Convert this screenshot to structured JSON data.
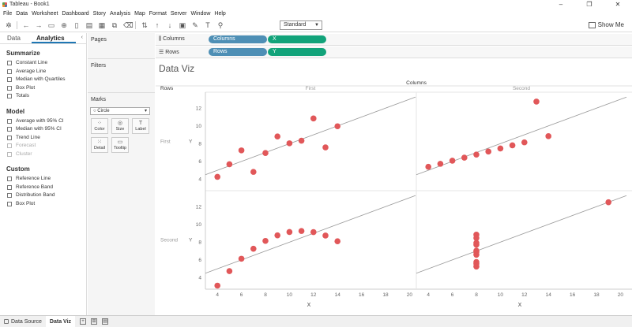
{
  "window": {
    "title": "Tableau - Book1",
    "minimize": "–",
    "maximize": "❐",
    "close": "✕"
  },
  "menu": [
    "File",
    "Data",
    "Worksheet",
    "Dashboard",
    "Story",
    "Analysis",
    "Map",
    "Format",
    "Server",
    "Window",
    "Help"
  ],
  "toolbar": {
    "fit": "Standard",
    "show_me": "Show Me"
  },
  "left_pane": {
    "tabs": [
      "Data",
      "Analytics"
    ],
    "collapse": "‹",
    "sections": [
      {
        "title": "Summarize",
        "items": [
          {
            "label": "Constant Line",
            "disabled": false
          },
          {
            "label": "Average Line",
            "disabled": false
          },
          {
            "label": "Median with Quartiles",
            "disabled": false
          },
          {
            "label": "Box Plot",
            "disabled": false
          },
          {
            "label": "Totals",
            "disabled": false
          }
        ]
      },
      {
        "title": "Model",
        "items": [
          {
            "label": "Average with 95% CI",
            "disabled": false
          },
          {
            "label": "Median with 95% CI",
            "disabled": false
          },
          {
            "label": "Trend Line",
            "disabled": false
          },
          {
            "label": "Forecast",
            "disabled": true
          },
          {
            "label": "Cluster",
            "disabled": true
          }
        ]
      },
      {
        "title": "Custom",
        "items": [
          {
            "label": "Reference Line",
            "disabled": false
          },
          {
            "label": "Reference Band",
            "disabled": false
          },
          {
            "label": "Distribution Band",
            "disabled": false
          },
          {
            "label": "Box Plot",
            "disabled": false
          }
        ]
      }
    ]
  },
  "cards": {
    "pages": "Pages",
    "filters": "Filters",
    "marks": "Marks",
    "mark_type": "Circle",
    "mark_buttons": [
      "Color",
      "Size",
      "Label",
      "Detail",
      "Tooltip"
    ]
  },
  "shelves": {
    "columns": {
      "label": "Columns",
      "pills": [
        "Columns",
        "X"
      ]
    },
    "rows": {
      "label": "Rows",
      "pills": [
        "Rows",
        "Y"
      ]
    }
  },
  "sheet_title": "Data Viz",
  "chart_data": {
    "type": "scatter",
    "column_header": "Columns",
    "row_header": "Rows",
    "columns": [
      "First",
      "Second"
    ],
    "rows": [
      "First",
      "Second"
    ],
    "xlabel": "X",
    "ylabel": "Y",
    "xticks": [
      4,
      6,
      8,
      10,
      12,
      14,
      16,
      18,
      20
    ],
    "yticks": [
      4,
      6,
      8,
      10,
      12
    ],
    "xlim": [
      3,
      20.5
    ],
    "ylim": [
      2.7,
      13.8
    ],
    "color": "#e15759",
    "trend_line": true,
    "panes": [
      {
        "row": "First",
        "col": "First",
        "points": [
          [
            10,
            8.04
          ],
          [
            8,
            6.95
          ],
          [
            13,
            7.58
          ],
          [
            9,
            8.81
          ],
          [
            11,
            8.33
          ],
          [
            14,
            9.96
          ],
          [
            6,
            7.24
          ],
          [
            4,
            4.26
          ],
          [
            12,
            10.84
          ],
          [
            7,
            4.82
          ],
          [
            5,
            5.68
          ]
        ]
      },
      {
        "row": "First",
        "col": "Second",
        "points": [
          [
            10,
            7.46
          ],
          [
            8,
            6.77
          ],
          [
            13,
            12.74
          ],
          [
            9,
            7.11
          ],
          [
            11,
            7.81
          ],
          [
            14,
            8.84
          ],
          [
            6,
            6.08
          ],
          [
            4,
            5.39
          ],
          [
            12,
            8.15
          ],
          [
            7,
            6.42
          ],
          [
            5,
            5.73
          ]
        ]
      },
      {
        "row": "Second",
        "col": "First",
        "points": [
          [
            10,
            9.14
          ],
          [
            8,
            8.14
          ],
          [
            13,
            8.74
          ],
          [
            9,
            8.77
          ],
          [
            11,
            9.26
          ],
          [
            14,
            8.1
          ],
          [
            6,
            6.13
          ],
          [
            4,
            3.1
          ],
          [
            12,
            9.13
          ],
          [
            7,
            7.26
          ],
          [
            5,
            4.74
          ]
        ]
      },
      {
        "row": "Second",
        "col": "Second",
        "points": [
          [
            8,
            6.58
          ],
          [
            8,
            5.76
          ],
          [
            8,
            7.71
          ],
          [
            8,
            8.84
          ],
          [
            8,
            8.47
          ],
          [
            8,
            7.04
          ],
          [
            8,
            5.25
          ],
          [
            19,
            12.5
          ],
          [
            8,
            5.56
          ],
          [
            8,
            7.91
          ],
          [
            8,
            6.89
          ]
        ]
      }
    ]
  },
  "bottom_tabs": [
    "Data Source",
    "Data Viz"
  ]
}
